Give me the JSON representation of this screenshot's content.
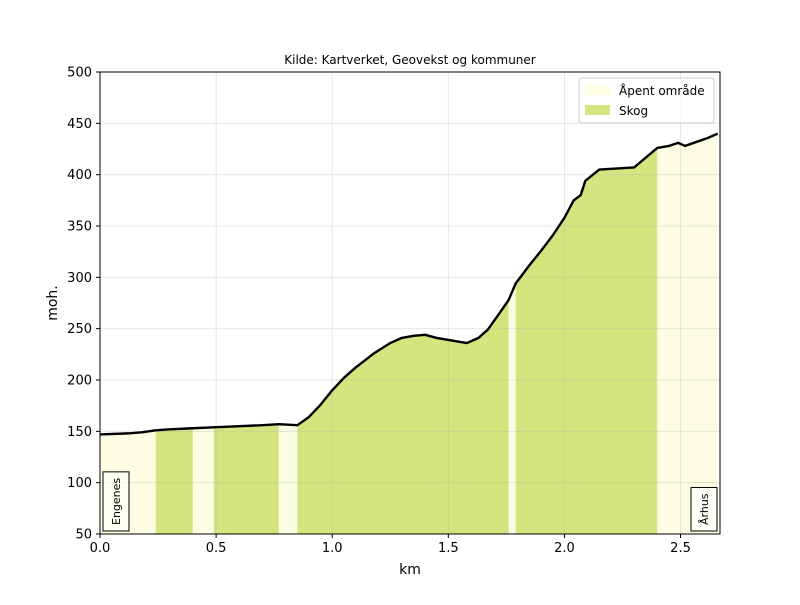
{
  "chart_data": {
    "type": "area",
    "title": "Kilde: Kartverket, Geovekst og kommuner",
    "xlabel": "km",
    "ylabel": "moh.",
    "xlim": [
      0,
      2.67
    ],
    "ylim": [
      50,
      500
    ],
    "x_ticks": [
      0.0,
      0.5,
      1.0,
      1.5,
      2.0,
      2.5
    ],
    "x_tick_labels": [
      "0.0",
      "0.5",
      "1.0",
      "1.5",
      "2.0",
      "2.5"
    ],
    "y_ticks": [
      50,
      100,
      150,
      200,
      250,
      300,
      350,
      400,
      450,
      500
    ],
    "y_tick_labels": [
      "50",
      "100",
      "150",
      "200",
      "250",
      "300",
      "350",
      "400",
      "450",
      "500"
    ],
    "grid": true,
    "legend_position": "top-right",
    "legend": [
      {
        "label": "Åpent område",
        "color": "#fdfde3"
      },
      {
        "label": "Skog",
        "color": "#d4e47e"
      }
    ],
    "land_cover": [
      {
        "type": "Åpent område",
        "from": 0.0,
        "to": 0.24
      },
      {
        "type": "Skog",
        "from": 0.24,
        "to": 0.4
      },
      {
        "type": "Åpent område",
        "from": 0.4,
        "to": 0.49
      },
      {
        "type": "Skog",
        "from": 0.49,
        "to": 0.77
      },
      {
        "type": "Åpent område",
        "from": 0.77,
        "to": 0.85
      },
      {
        "type": "Skog",
        "from": 0.85,
        "to": 1.76
      },
      {
        "type": "Åpent område",
        "from": 1.76,
        "to": 1.79
      },
      {
        "type": "Skog",
        "from": 1.79,
        "to": 2.4
      },
      {
        "type": "Åpent område",
        "from": 2.4,
        "to": 2.67
      }
    ],
    "profile": {
      "x": [
        0.0,
        0.12,
        0.18,
        0.24,
        0.3,
        0.4,
        0.5,
        0.6,
        0.7,
        0.77,
        0.85,
        0.9,
        0.95,
        1.0,
        1.05,
        1.1,
        1.18,
        1.25,
        1.3,
        1.35,
        1.4,
        1.45,
        1.5,
        1.58,
        1.63,
        1.67,
        1.72,
        1.76,
        1.79,
        1.85,
        1.9,
        1.95,
        2.0,
        2.04,
        2.07,
        2.09,
        2.15,
        2.3,
        2.4,
        2.45,
        2.49,
        2.52,
        2.57,
        2.62,
        2.66
      ],
      "y": [
        147,
        148,
        149,
        151,
        152,
        153,
        154,
        155,
        156,
        157,
        156,
        164,
        176,
        190,
        202,
        212,
        226,
        236,
        241,
        243,
        244,
        241,
        239,
        236,
        241,
        249,
        265,
        278,
        294,
        312,
        326,
        341,
        358,
        375,
        380,
        394,
        405,
        407,
        426,
        428,
        431,
        428,
        432,
        436,
        440
      ]
    },
    "annotations": [
      {
        "text": "Engenes",
        "x": 0.0,
        "position": "bottom-left",
        "rotation": -90
      },
      {
        "text": "Århus",
        "x": 2.66,
        "position": "bottom-right",
        "rotation": -90
      }
    ]
  }
}
